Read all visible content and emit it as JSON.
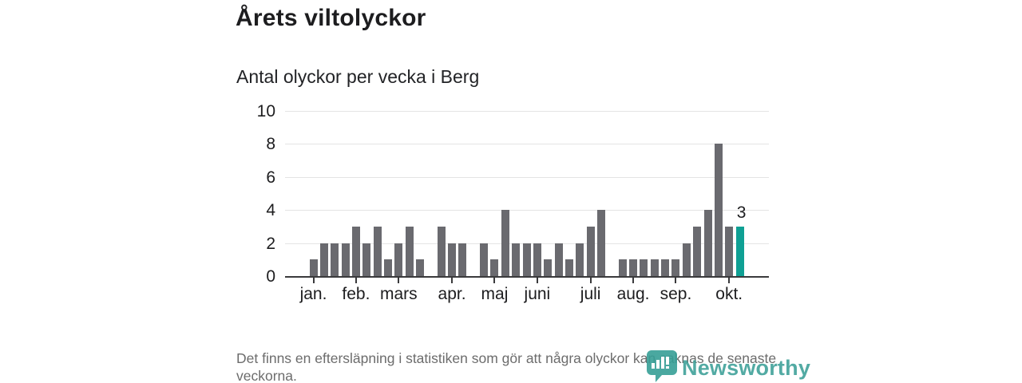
{
  "header": {
    "title": "Årets viltolyckor",
    "subtitle": "Antal olyckor per vecka i Berg"
  },
  "chart_data": {
    "type": "bar",
    "title": "Årets viltolyckor",
    "subtitle": "Antal olyckor per vecka i Berg",
    "x_description": "one bar per week, January through October",
    "values": [
      1,
      2,
      2,
      2,
      3,
      2,
      3,
      1,
      2,
      3,
      1,
      0,
      3,
      2,
      2,
      0,
      2,
      1,
      4,
      2,
      2,
      2,
      1,
      2,
      1,
      2,
      3,
      4,
      0,
      1,
      1,
      1,
      1,
      1,
      1,
      2,
      3,
      4,
      8,
      3,
      3
    ],
    "month_ticks": [
      {
        "label": "jan.",
        "bar_index": 0
      },
      {
        "label": "feb.",
        "bar_index": 4
      },
      {
        "label": "mars",
        "bar_index": 8
      },
      {
        "label": "apr.",
        "bar_index": 13
      },
      {
        "label": "maj",
        "bar_index": 17
      },
      {
        "label": "juni",
        "bar_index": 21
      },
      {
        "label": "juli",
        "bar_index": 26
      },
      {
        "label": "aug.",
        "bar_index": 30
      },
      {
        "label": "sep.",
        "bar_index": 34
      },
      {
        "label": "okt.",
        "bar_index": 39
      }
    ],
    "yticks": [
      0,
      2,
      4,
      6,
      8,
      10
    ],
    "ylim": [
      0,
      10
    ],
    "grid": "horizontal-light",
    "legend": "none",
    "bar_color": "#6a6a6f",
    "highlight": {
      "bar_index": 40,
      "value": 3,
      "label": "3",
      "color": "#0fa094"
    }
  },
  "footer": {
    "note": "Det finns en eftersläpning i statistiken som gör att några olyckor kan saknas de senaste veckorna."
  },
  "logo": {
    "name": "Newsworthy",
    "color": "#369e96"
  },
  "colors": {
    "background": "#ffffff",
    "text_dark": "#1d1d1f",
    "axis": "#3a3a3c",
    "gridline": "#e4e4e4",
    "footer_text": "#6c6c6c",
    "bar": "#6a6a6f",
    "highlight": "#0fa094",
    "logo": "#369e96"
  }
}
